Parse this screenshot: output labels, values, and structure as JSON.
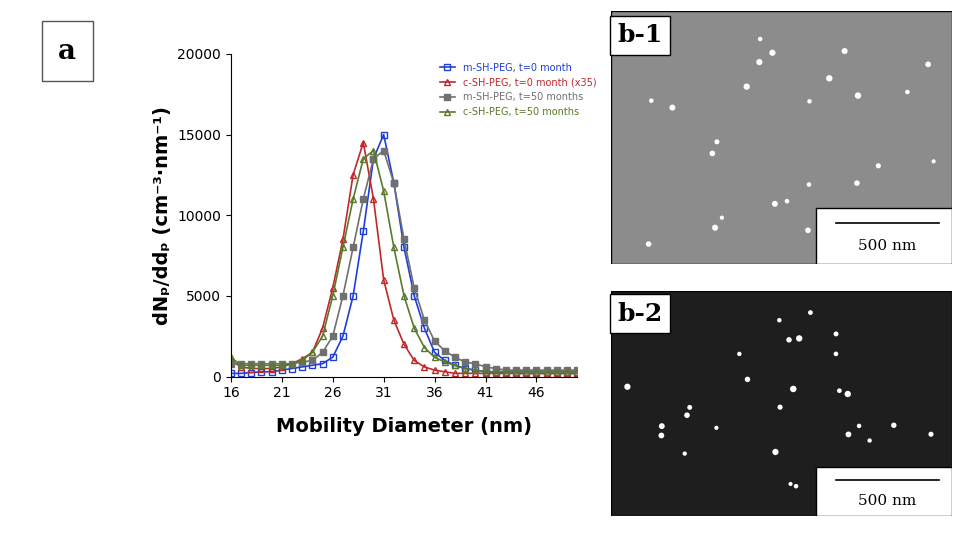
{
  "chart_data": {
    "type": "line",
    "x_label": "Mobility Diameter (nm)",
    "y_label": "dNₚ/ddₚ (cm⁻³·nm⁻¹)",
    "xlim": [
      16,
      50
    ],
    "xticks": [
      16,
      21,
      26,
      31,
      36,
      41,
      46
    ],
    "ylim": [
      0,
      20000
    ],
    "yticks": [
      0,
      5000,
      10000,
      15000,
      20000
    ],
    "grid": false,
    "legend": "upper right",
    "series": [
      {
        "name": "m-SH-PEG, t=0 month",
        "color": "#1f3fd6",
        "marker": "square_open",
        "line_style": "solid",
        "x": [
          16,
          17,
          18,
          19,
          20,
          21,
          22,
          23,
          24,
          25,
          26,
          27,
          28,
          29,
          30,
          31,
          32,
          33,
          34,
          35,
          36,
          37,
          38,
          39,
          40,
          41,
          42,
          43,
          44,
          45,
          46,
          47,
          48,
          49,
          50
        ],
        "values": [
          200,
          200,
          250,
          300,
          300,
          400,
          500,
          600,
          700,
          800,
          1200,
          2500,
          5000,
          9000,
          13500,
          15000,
          12000,
          8000,
          5000,
          3000,
          1500,
          1000,
          700,
          500,
          400,
          300,
          300,
          250,
          200,
          200,
          200,
          200,
          200,
          200,
          200
        ]
      },
      {
        "name": "c-SH-PEG, t=0 month (x35)",
        "color": "#c0282a",
        "marker": "triangle_open",
        "line_style": "solid",
        "x": [
          16,
          17,
          18,
          19,
          20,
          21,
          22,
          23,
          24,
          25,
          26,
          27,
          28,
          29,
          30,
          31,
          32,
          33,
          34,
          35,
          36,
          37,
          38,
          39,
          40,
          41,
          42,
          43,
          44,
          45,
          46,
          47,
          48,
          49,
          50
        ],
        "values": [
          1000,
          600,
          500,
          500,
          500,
          600,
          800,
          1100,
          1500,
          3000,
          5500,
          8500,
          12500,
          14500,
          11000,
          6000,
          3500,
          2000,
          1000,
          600,
          400,
          300,
          200,
          200,
          200,
          200,
          200,
          200,
          200,
          200,
          200,
          200,
          200,
          200,
          200
        ]
      },
      {
        "name": "m-SH-PEG, t=50 months",
        "color": "#707070",
        "marker": "square",
        "line_style": "solid",
        "x": [
          16,
          17,
          18,
          19,
          20,
          21,
          22,
          23,
          24,
          25,
          26,
          27,
          28,
          29,
          30,
          31,
          32,
          33,
          34,
          35,
          36,
          37,
          38,
          39,
          40,
          41,
          42,
          43,
          44,
          45,
          46,
          47,
          48,
          49,
          50
        ],
        "values": [
          800,
          800,
          800,
          800,
          800,
          800,
          800,
          900,
          1000,
          1500,
          2500,
          5000,
          8000,
          11000,
          13500,
          14000,
          12000,
          8500,
          5500,
          3500,
          2200,
          1600,
          1200,
          900,
          800,
          600,
          500,
          400,
          400,
          400,
          400,
          400,
          400,
          400,
          400
        ]
      },
      {
        "name": "c-SH-PEG, t=50 months",
        "color": "#5a7a2a",
        "marker": "triangle_open",
        "line_style": "solid",
        "x": [
          16,
          17,
          18,
          19,
          20,
          21,
          22,
          23,
          24,
          25,
          26,
          27,
          28,
          29,
          30,
          31,
          32,
          33,
          34,
          35,
          36,
          37,
          38,
          39,
          40,
          41,
          42,
          43,
          44,
          45,
          46,
          47,
          48,
          49,
          50
        ],
        "values": [
          1200,
          700,
          700,
          700,
          700,
          700,
          800,
          1000,
          1500,
          2500,
          5000,
          8000,
          11000,
          13500,
          14000,
          11500,
          8000,
          5000,
          3000,
          1800,
          1200,
          900,
          700,
          500,
          400,
          300,
          300,
          300,
          300,
          300,
          300,
          300,
          300,
          300,
          300
        ]
      }
    ]
  },
  "panel_label": "a",
  "images": [
    {
      "label": "b-1",
      "scale_bar": "500 nm",
      "background": "#8c8c8c"
    },
    {
      "label": "b-2",
      "scale_bar": "500 nm",
      "background": "#1e1e1e"
    }
  ]
}
